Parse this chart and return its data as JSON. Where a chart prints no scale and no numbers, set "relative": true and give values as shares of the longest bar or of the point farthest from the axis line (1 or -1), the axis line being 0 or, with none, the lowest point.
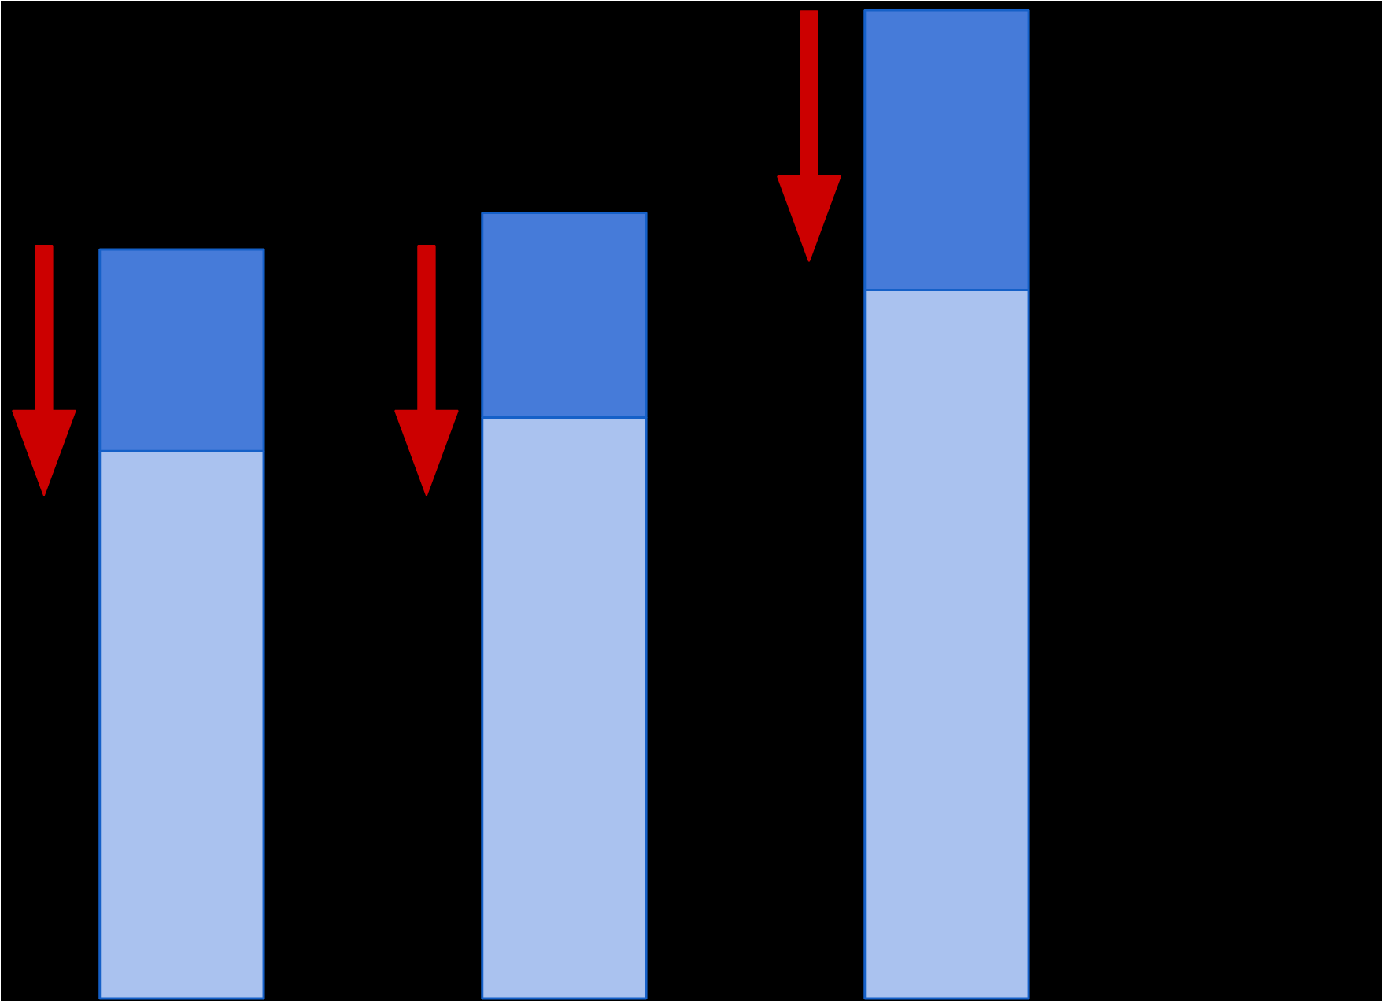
{
  "chart_data": {
    "type": "bar",
    "stacked": true,
    "relative": true,
    "categories": [
      null,
      null,
      null
    ],
    "series": [
      {
        "color": "#aac2ef",
        "values": [
          0.554,
          0.588,
          0.717
        ]
      },
      {
        "color": "#467bd9",
        "values": [
          0.204,
          0.207,
          0.283
        ]
      }
    ]
  }
}
